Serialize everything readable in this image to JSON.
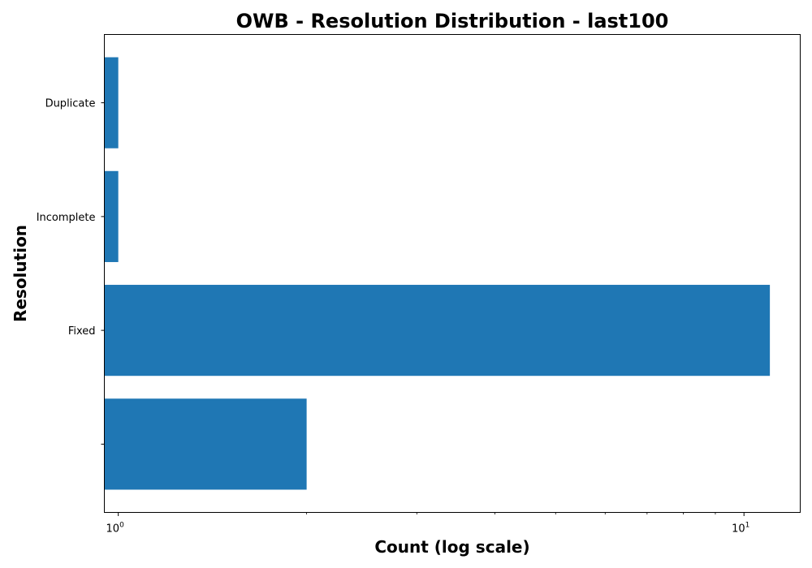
{
  "chart_data": {
    "type": "bar",
    "orientation": "horizontal",
    "title": "OWB - Resolution Distribution - last100",
    "xlabel": "Count (log scale)",
    "ylabel": "Resolution",
    "x_scale": "log",
    "xlim": [
      0.95,
      12.3
    ],
    "x_major_ticks": [
      {
        "base": "10",
        "exp": "0"
      },
      {
        "base": "10",
        "exp": "1"
      }
    ],
    "categories": [
      "",
      "Fixed",
      "Incomplete",
      "Duplicate"
    ],
    "values": [
      2,
      11,
      1,
      1
    ],
    "bar_color": "#1f77b4",
    "grid": false,
    "legend": "none"
  }
}
